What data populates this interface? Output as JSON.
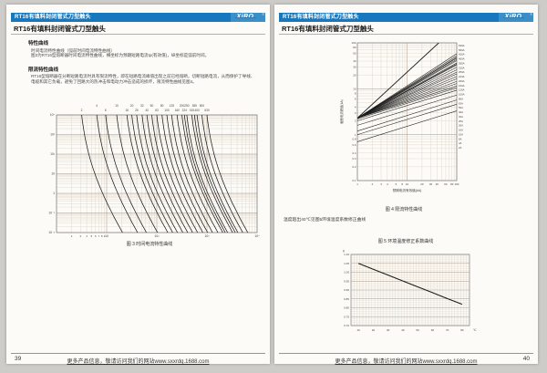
{
  "shared": {
    "header_bar": "RT16有填料封闭管式刀型触头",
    "logo": "XiRO",
    "logo_reg": "®",
    "page_title": "RT16有填料封闭管式刀型触头",
    "footer_text": "更多产品信息，敬请访问我们的网站www.sxxrdq.1688.com"
  },
  "page_left": {
    "page_number": "39",
    "sections": [
      {
        "heading": "特性曲线",
        "lines": [
          "时间电流特性曲线（弧前时间电流特性曲线）",
          "图3为RT16型熔断器时间电流特性曲线，横坐标为预期短路电流Ip(有效值)，纵坐标是弧前时间。"
        ]
      },
      {
        "heading": "限流特性曲线",
        "lines": [
          "RT16型熔断器在分断短路电流时具有限流特性，即在短路电流峰值出现之前已经熔断，切断短路电流，从而保护了导线、",
          "电缆和其它负载，避免了回路大的热冲击和电动力冲击造成的损坏，限流特性曲线见图4。"
        ]
      }
    ],
    "figure3_caption": "图 3 时间电流特性曲线"
  },
  "page_right": {
    "page_number": "40",
    "figure4_caption": "图 4 限流特性曲线",
    "note": "温度超出40℃见图5环境温度系数修正曲线",
    "figure5_title": "图 5 环境温度修正系数曲线"
  },
  "colors": {
    "bar_blue": "#1878bd",
    "logo_blue": "#3a8fc9",
    "accent_red": "#e03a28",
    "title_rule_blue": "#7fc0e4",
    "footer_rule_blue": "#57a6d6",
    "page_bg": "#fcfbf7",
    "canvas_bg": "#cdccc8",
    "grid_major": "#a39386",
    "grid_minor": "#d2c6b7",
    "curve": "#1c1c1c"
  },
  "chart_data": [
    {
      "type": "line",
      "title": "图 3 时间电流特性曲线",
      "xscale": "log",
      "yscale": "log",
      "xlim": [
        1,
        10000
      ],
      "ylim": [
        0.01,
        10000
      ],
      "grid": true,
      "ratings": [
        2,
        4,
        6,
        10,
        16,
        20,
        25,
        32,
        40,
        50,
        63,
        80,
        100,
        125,
        160,
        200,
        224,
        250,
        315,
        355,
        400,
        500,
        630
      ],
      "yticks": [
        "10⁴",
        "10³",
        "10²",
        "10",
        "1",
        "10⁻¹",
        "10⁻²"
      ],
      "xminor_labels": [
        2,
        3,
        4,
        5,
        6,
        7,
        8,
        9
      ],
      "xdecades": [
        [
          10,
          "10"
        ],
        [
          100,
          "10²"
        ],
        [
          1000,
          "10³"
        ],
        [
          10000,
          "10⁴"
        ]
      ],
      "curve_model": {
        "amp": 1.3,
        "k": 2.2,
        "p": 0.25
      }
    },
    {
      "type": "line",
      "title": "图 4 限流特性曲线",
      "xlabel": "预期电流有效值(kA)",
      "ylabel": "截断电流峰值(kA)",
      "xscale": "log",
      "yscale": "log",
      "xlim": [
        1,
        100
      ],
      "ylim": [
        0.1,
        100
      ],
      "grid": true,
      "xticks": [
        [
          1,
          "1"
        ],
        [
          2,
          "2"
        ],
        [
          3,
          "3"
        ],
        [
          4,
          "4"
        ],
        [
          6,
          "6"
        ],
        [
          8,
          "8"
        ],
        [
          10,
          "10"
        ],
        [
          20,
          "20"
        ],
        [
          30,
          "30"
        ],
        [
          40,
          "40"
        ],
        [
          60,
          "60"
        ],
        [
          80,
          "80"
        ],
        [
          100,
          "100"
        ]
      ],
      "yticks": [
        [
          100,
          "100"
        ],
        [
          80,
          "80"
        ],
        [
          60,
          "60"
        ],
        [
          40,
          "40"
        ],
        [
          30,
          "30"
        ],
        [
          20,
          "20"
        ],
        [
          10,
          "10"
        ],
        [
          8,
          "8"
        ],
        [
          6,
          "6"
        ],
        [
          4,
          "4"
        ],
        [
          3,
          "3"
        ],
        [
          2,
          "2"
        ],
        [
          1,
          "1"
        ],
        [
          0.8,
          "0.8"
        ],
        [
          0.6,
          "0.6"
        ],
        [
          0.4,
          "0.4"
        ],
        [
          0.3,
          "0.3"
        ],
        [
          0.2,
          "0.2"
        ],
        [
          0.1,
          "0.1"
        ]
      ],
      "peak_line": {
        "x": [
          1,
          43.5
        ],
        "y": [
          2.3,
          100
        ]
      },
      "lines": [
        {
          "label": "630A",
          "y_at_1": 2.3,
          "y_at_100": 58
        },
        {
          "label": "500A",
          "y_at_1": 2.3,
          "y_at_100": 52
        },
        {
          "label": "425A",
          "y_at_1": 2.3,
          "y_at_100": 48
        },
        {
          "label": "400A",
          "y_at_1": 2.3,
          "y_at_100": 46.5
        },
        {
          "label": "355A",
          "y_at_1": 2.3,
          "y_at_100": 43.5
        },
        {
          "label": "315A",
          "y_at_1": 2.3,
          "y_at_100": 41
        },
        {
          "label": "250A",
          "y_at_1": 2.3,
          "y_at_100": 36.5
        },
        {
          "label": "224A",
          "y_at_1": 2.3,
          "y_at_100": 34.5
        },
        {
          "label": "200A",
          "y_at_1": 2.3,
          "y_at_100": 33
        },
        {
          "label": "160A",
          "y_at_1": 2.3,
          "y_at_100": 29.5
        },
        {
          "label": "125A",
          "y_at_1": 2.3,
          "y_at_100": 26
        },
        {
          "label": "100A",
          "y_at_1": 2.3,
          "y_at_100": 23
        },
        {
          "label": "80A",
          "y_at_1": 2.3,
          "y_at_100": 21
        },
        {
          "label": "63A",
          "y_at_1": 2.3,
          "y_at_100": 18.5
        },
        {
          "label": "50A",
          "y_at_1": 2.3,
          "y_at_100": 16.5
        },
        {
          "label": "40A",
          "y_at_1": 2.3,
          "y_at_100": 14.5
        },
        {
          "label": "32A",
          "y_at_1": 2.3,
          "y_at_100": 13
        },
        {
          "label": "25A",
          "y_at_1": 2.3,
          "y_at_100": 11.5
        },
        {
          "label": "20A",
          "y_at_1": 2.2,
          "y_at_100": 10.5
        },
        {
          "label": "16A",
          "y_at_1": 2.0,
          "y_at_100": 9.3
        },
        {
          "label": "10A",
          "y_at_1": 1.6,
          "y_at_100": 7.3
        },
        {
          "label": "6A",
          "y_at_1": 1.2,
          "y_at_100": 5.7
        },
        {
          "label": "4A",
          "y_at_1": 1.0,
          "y_at_100": 4.6
        },
        {
          "label": "2A",
          "y_at_1": 0.7,
          "y_at_100": 3.3
        }
      ]
    },
    {
      "type": "line",
      "title": "图 5 环境温度修正系数曲线",
      "ylabel": "K",
      "x_unit": "℃",
      "xlim": [
        5,
        85
      ],
      "ylim": [
        0.7,
        1.1
      ],
      "grid": true,
      "xticks": [
        10,
        20,
        30,
        40,
        50,
        60,
        70,
        80
      ],
      "yticks": [
        "1.10",
        "1.05",
        "1.00",
        "0.95",
        "0.90",
        "0.85",
        "0.80",
        "0.75",
        "0.70"
      ],
      "points": [
        [
          10,
          1.05
        ],
        [
          20,
          1.017
        ],
        [
          30,
          0.984
        ],
        [
          40,
          0.951
        ],
        [
          50,
          0.918
        ],
        [
          60,
          0.885
        ],
        [
          70,
          0.852
        ],
        [
          80,
          0.82
        ]
      ]
    }
  ]
}
